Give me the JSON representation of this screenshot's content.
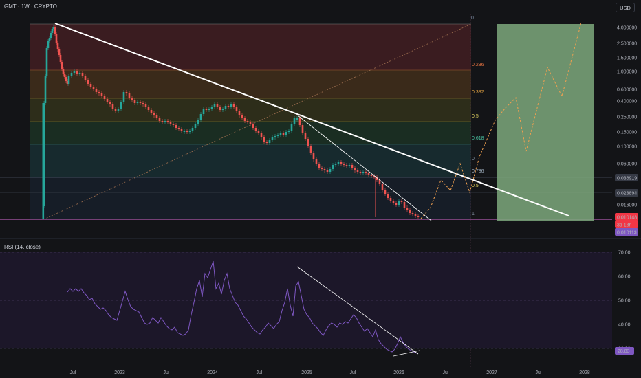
{
  "header": {
    "symbol_line": "GMT · 1W · CRYPTO",
    "currency": "USD"
  },
  "rsi": {
    "title": "RSI (14, close)",
    "current_value": "28.83",
    "y_labels": [
      "70.00",
      "60.00",
      "50.00",
      "40.00",
      "30.00"
    ],
    "y_values": [
      70,
      60,
      50,
      40,
      30
    ]
  },
  "price_axis": {
    "labels": [
      "4.000000",
      "2.500000",
      "1.500000",
      "1.000000",
      "0.600000",
      "0.400000",
      "0.250000",
      "0.150000",
      "0.100000",
      "0.060000",
      "0.036919",
      "0.023894",
      "0.016000",
      "0.010148",
      "3d 13h",
      "0.010113"
    ],
    "badge_colors": {
      "current": "#f23645",
      "low": "#7e57c2",
      "level": "#363a45"
    }
  },
  "fib_levels": [
    "0",
    "0.236",
    "0.382",
    "0.5",
    "0.618",
    "0",
    "0.786",
    "0.5",
    "1"
  ],
  "time_axis": [
    "Jul",
    "2023",
    "Jul",
    "2024",
    "Jul",
    "2025",
    "Jul",
    "2026",
    "Jul",
    "2027",
    "Jul",
    "2028"
  ],
  "colors": {
    "background": "#131417",
    "trendline": "#ffffff",
    "target_box": "#7ea87c",
    "rsi_line": "#7e57c2",
    "up_candle": "#26a69a",
    "down_candle": "#ef5350",
    "projection": "#f0a050"
  }
}
